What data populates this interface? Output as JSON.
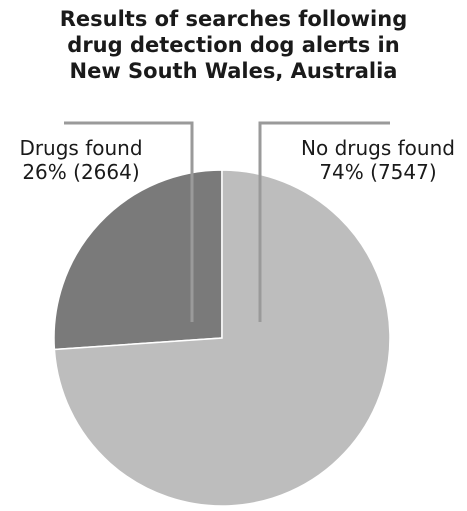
{
  "chart_data": {
    "type": "pie",
    "title_lines": [
      "Results of searches following",
      "drug detection dog alerts in",
      "New South Wales, Australia"
    ],
    "slices": [
      {
        "label": "Drugs found",
        "percent_label": "26% (2664)",
        "value": 2664,
        "percent": 26,
        "color": "#7a7a7a"
      },
      {
        "label": "No drugs found",
        "percent_label": "74% (7547)",
        "value": 7547,
        "percent": 74,
        "color": "#bdbdbd"
      }
    ],
    "legend": "none"
  }
}
